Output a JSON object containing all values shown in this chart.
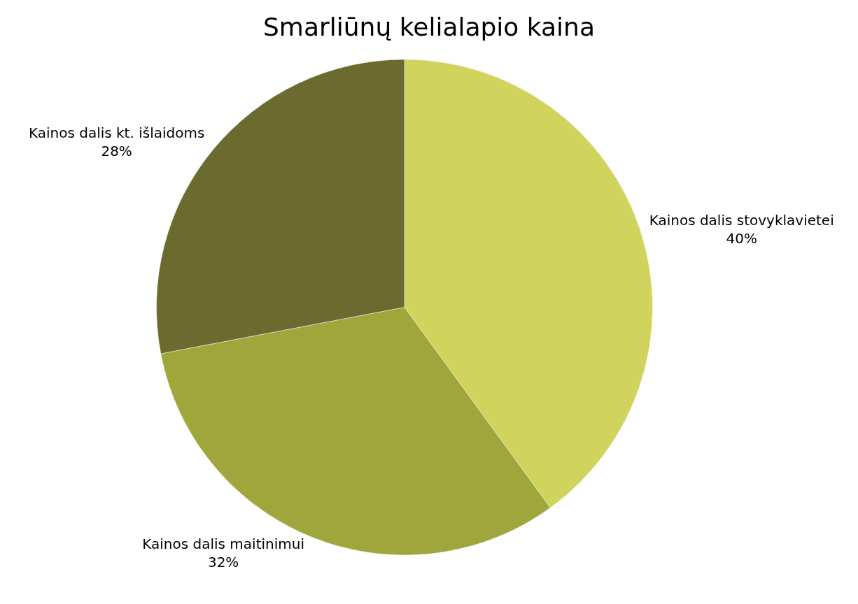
{
  "chart_data": {
    "type": "pie",
    "title": "Smarliūnų kelialapio kaina",
    "categories": [
      "Kainos dalis stovyklavietei",
      "Kainos dalis maitinimui",
      "Kainos dalis kt. išlaidoms"
    ],
    "values": [
      40,
      32,
      28
    ],
    "value_labels": [
      "40%",
      "32%",
      "28%"
    ],
    "colors": [
      "#d0d35c",
      "#9fa63c",
      "#6b6b30"
    ],
    "legend": false
  }
}
